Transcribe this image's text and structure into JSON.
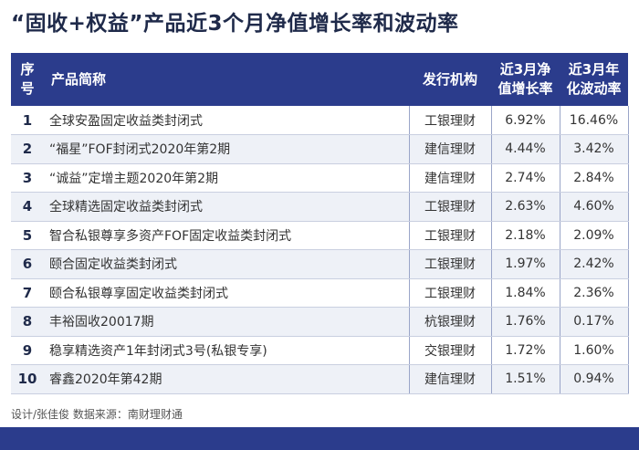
{
  "title": "“固收+权益”产品近3个月净值增长率和波动率",
  "chart_data": {
    "type": "table",
    "columns": [
      "序号",
      "产品简称",
      "发行机构",
      "近3月净值增长率",
      "近3月年化波动率"
    ],
    "header": {
      "index": "序号",
      "name": "产品简称",
      "org": "发行机构",
      "growth_line1": "近3月净",
      "growth_line2": "值增长率",
      "vol_line1": "近3月年",
      "vol_line2": "化波动率"
    },
    "rows": [
      {
        "index": "1",
        "name": "全球安盈固定收益类封闭式",
        "org": "工银理财",
        "growth": "6.92%",
        "vol": "16.46%"
      },
      {
        "index": "2",
        "name": "“福星”FOF封闭式2020年第2期",
        "org": "建信理财",
        "growth": "4.44%",
        "vol": "3.42%"
      },
      {
        "index": "3",
        "name": "“诚益”定增主题2020年第2期",
        "org": "建信理财",
        "growth": "2.74%",
        "vol": "2.84%"
      },
      {
        "index": "4",
        "name": "全球精选固定收益类封闭式",
        "org": "工银理财",
        "growth": "2.63%",
        "vol": "4.60%"
      },
      {
        "index": "5",
        "name": "智合私银尊享多资产FOF固定收益类封闭式",
        "org": "工银理财",
        "growth": "2.18%",
        "vol": "2.09%"
      },
      {
        "index": "6",
        "name": "颐合固定收益类封闭式",
        "org": "工银理财",
        "growth": "1.97%",
        "vol": "2.42%"
      },
      {
        "index": "7",
        "name": "颐合私银尊享固定收益类封闭式",
        "org": "工银理财",
        "growth": "1.84%",
        "vol": "2.36%"
      },
      {
        "index": "8",
        "name": "丰裕固收20017期",
        "org": "杭银理财",
        "growth": "1.76%",
        "vol": "0.17%"
      },
      {
        "index": "9",
        "name": "稳享精选资产1年封闭式3号(私银专享)",
        "org": "交银理财",
        "growth": "1.72%",
        "vol": "1.60%"
      },
      {
        "index": "10",
        "name": "睿鑫2020年第42期",
        "org": "建信理财",
        "growth": "1.51%",
        "vol": "0.94%"
      }
    ]
  },
  "footer": "设计/张佳俊 数据来源：南财理财通",
  "colors": {
    "header_bg": "#2b3c8c",
    "stripe": "#eef1f7",
    "title": "#1f2a4a"
  }
}
